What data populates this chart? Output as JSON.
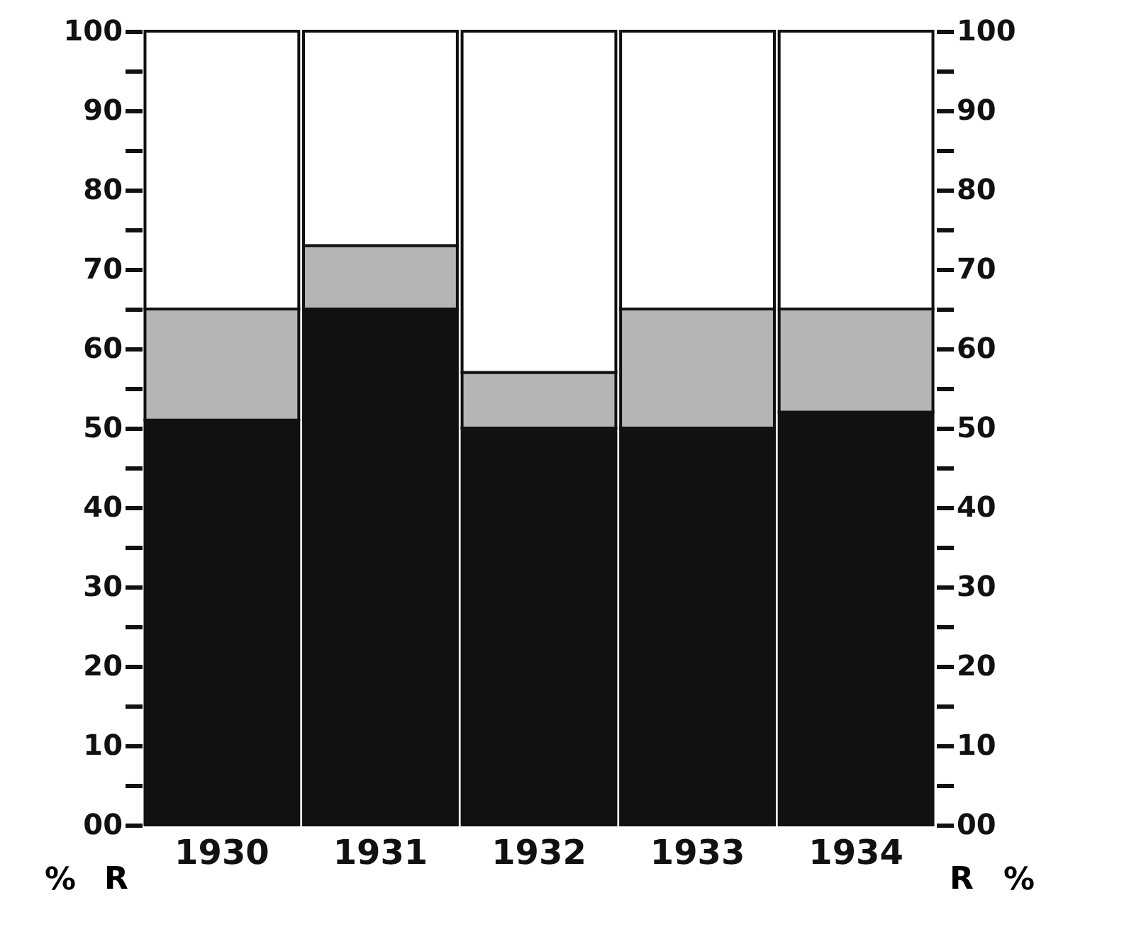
{
  "chart_data": {
    "type": "bar",
    "stacked": true,
    "categories": [
      "1930",
      "1931",
      "1932",
      "1933",
      "1934"
    ],
    "series": [
      {
        "color": "#111111",
        "values": [
          51,
          65,
          50,
          50,
          52
        ]
      },
      {
        "color": "#b5b5b5",
        "values": [
          14,
          8,
          7,
          15,
          13
        ]
      },
      {
        "color": "#ffffff",
        "values": [
          35,
          27,
          43,
          35,
          35
        ]
      }
    ],
    "ylim": [
      0,
      100
    ],
    "yticks": [
      {
        "value": 0,
        "label": "00"
      },
      {
        "value": 5,
        "label": null
      },
      10,
      {
        "value": 15,
        "label": null
      },
      20,
      {
        "value": 25,
        "label": null
      },
      30,
      {
        "value": 35,
        "label": null
      },
      40,
      {
        "value": 45,
        "label": null
      },
      50,
      {
        "value": 55,
        "label": null
      },
      60,
      {
        "value": 65,
        "label": null
      },
      70,
      {
        "value": 75,
        "label": null
      },
      80,
      {
        "value": 85,
        "label": null
      },
      90,
      {
        "value": 95,
        "label": null
      },
      100
    ],
    "y2lim": [
      0,
      100
    ],
    "y2ticks": [
      {
        "value": 0,
        "label": "00"
      },
      {
        "value": 5,
        "label": null
      },
      10,
      {
        "value": 15,
        "label": null
      },
      20,
      {
        "value": 25,
        "label": null
      },
      30,
      {
        "value": 35,
        "label": null
      },
      40,
      {
        "value": 45,
        "label": null
      },
      50,
      {
        "value": 55,
        "label": null
      },
      60,
      {
        "value": 65,
        "label": null
      },
      70,
      {
        "value": 75,
        "label": null
      },
      80,
      {
        "value": 85,
        "label": null
      },
      90,
      {
        "value": 95,
        "label": null
      },
      100
    ],
    "ylabel": "%",
    "y2label": "%",
    "annotations": [
      "R",
      "R"
    ],
    "grid": false
  }
}
